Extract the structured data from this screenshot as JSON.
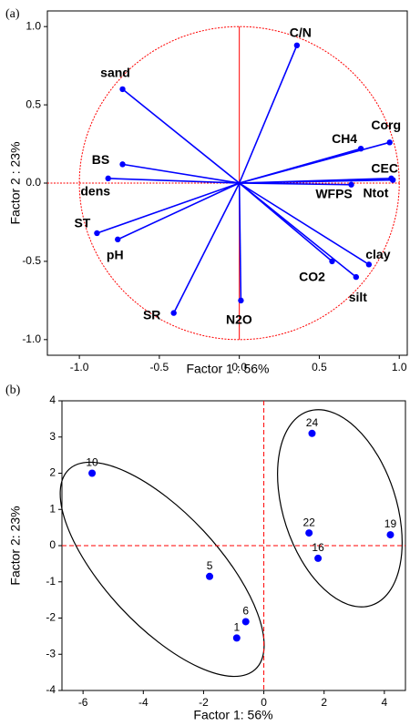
{
  "chart_data": [
    {
      "type": "vector",
      "label": "(a)",
      "x_label": "Factor 1 : 56%",
      "y_label": "Factor 2 : 23%",
      "labels": [
        "C/N",
        "sand",
        "CH4",
        "Corg",
        "BS",
        "CEC",
        "dens",
        "WFPS",
        "Ntot",
        "ST",
        "pH",
        "clay",
        "CO2",
        "silt",
        "SR",
        "N2O"
      ],
      "x": [
        0.36,
        -0.73,
        0.76,
        0.94,
        -0.73,
        0.96,
        -0.82,
        0.7,
        0.95,
        -0.89,
        -0.76,
        0.81,
        0.58,
        0.73,
        -0.41,
        0.01
      ],
      "y": [
        0.88,
        0.6,
        0.22,
        0.26,
        0.12,
        0.02,
        0.03,
        -0.01,
        0.03,
        -0.32,
        -0.36,
        -0.52,
        -0.5,
        -0.6,
        -0.83,
        -0.75
      ],
      "color": "#0000ff",
      "circle_color": "#ff0000",
      "xlim": [
        -1.2,
        1.05
      ],
      "ylim": [
        -1.1,
        1.1
      ],
      "xticks": [
        {
          "value": -1,
          "label": "-1.0"
        },
        -0.5,
        {
          "value": 0,
          "label": "0.0"
        },
        0.5,
        {
          "value": 1,
          "label": "1.0"
        }
      ],
      "yticks": [
        {
          "value": -1,
          "label": "-1.0"
        },
        -0.5,
        {
          "value": 0,
          "label": "0.0"
        },
        0.5,
        {
          "value": 1,
          "label": "1.0"
        }
      ]
    },
    {
      "type": "scatter",
      "label": "(b)",
      "x_label": "Factor 1: 56%",
      "y_label": "Factor 2: 23%",
      "labels": [
        "10",
        "24",
        "22",
        "19",
        "16",
        "5",
        "6",
        "1"
      ],
      "x": [
        -5.7,
        1.6,
        1.5,
        4.2,
        1.8,
        -1.8,
        -0.6,
        -0.9
      ],
      "y": [
        2.0,
        3.1,
        0.35,
        0.3,
        -0.35,
        -0.85,
        -2.1,
        -2.55
      ],
      "color": "#0000ff",
      "xlim": [
        -6.7,
        4.7
      ],
      "ylim": [
        -4,
        4
      ],
      "xticks": [
        -6,
        -4,
        -2,
        0,
        2,
        4
      ],
      "yticks": [
        -4,
        -3,
        -2,
        -1,
        0,
        1,
        2,
        3,
        4
      ]
    }
  ]
}
